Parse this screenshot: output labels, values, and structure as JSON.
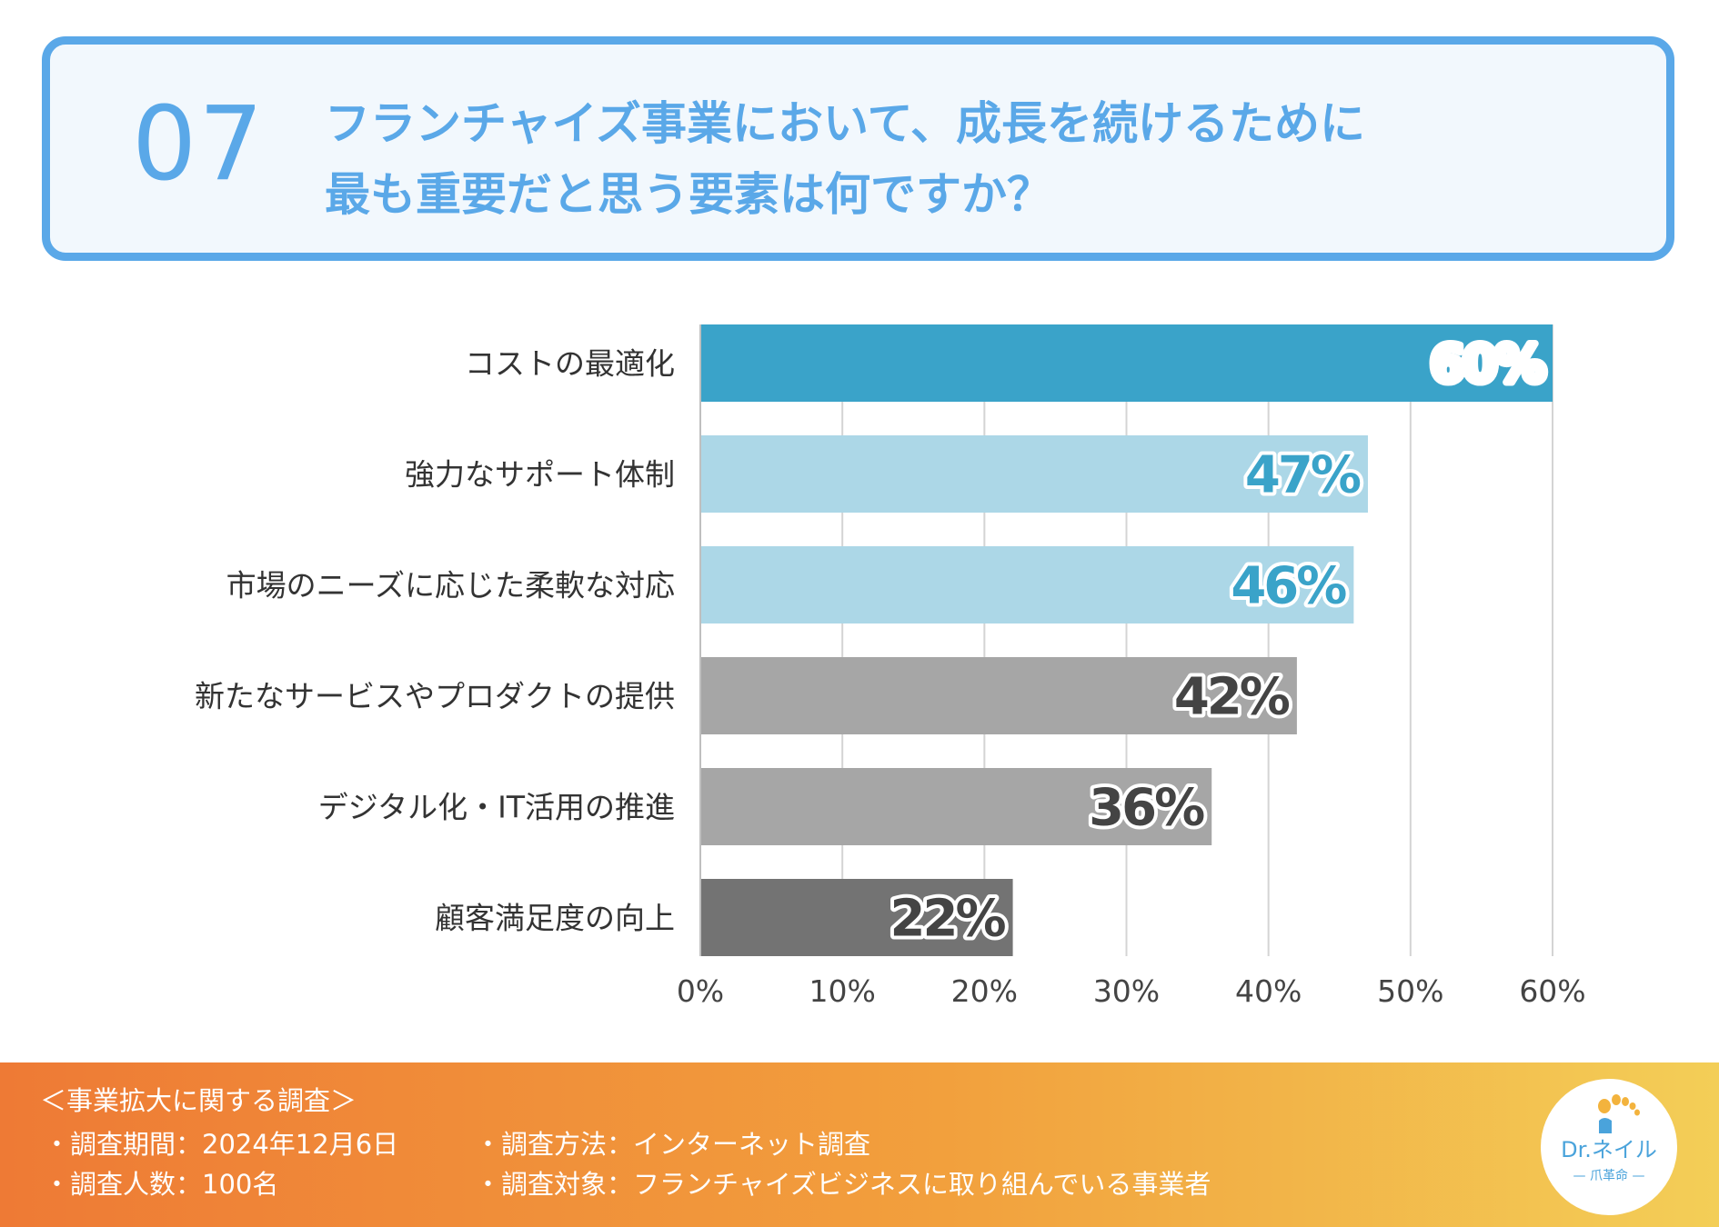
{
  "question": {
    "number": "07",
    "line1": "フランチャイズ事業において、成長を続けるために",
    "line2": "最も重要だと思う要素は何ですか？"
  },
  "chart_data": {
    "type": "bar",
    "orientation": "horizontal",
    "categories": [
      "コストの最適化",
      "強力なサポート体制",
      "市場のニーズに応じた柔軟な対応",
      "新たなサービスやプロダクトの提供",
      "デジタル化・IT活用の推進",
      "顧客満足度の向上"
    ],
    "values": [
      60,
      47,
      46,
      42,
      36,
      22
    ],
    "value_labels": [
      "60%",
      "47%",
      "46%",
      "42%",
      "36%",
      "22%"
    ],
    "bar_colors": [
      "#3aa3c9",
      "#acd7e7",
      "#acd7e7",
      "#a6a6a6",
      "#a6a6a6",
      "#737373"
    ],
    "value_label_colors": [
      "#ffffff",
      "#3aa3c9",
      "#3aa3c9",
      "#444444",
      "#444444",
      "#444444"
    ],
    "xlim": [
      0,
      60
    ],
    "xticks": [
      0,
      10,
      20,
      30,
      40,
      50,
      60
    ],
    "xtick_labels": [
      "0%",
      "10%",
      "20%",
      "30%",
      "40%",
      "50%",
      "60%"
    ],
    "grid": true,
    "title": "",
    "xlabel": "",
    "ylabel": ""
  },
  "footer": {
    "title": "＜事業拡大に関する調査＞",
    "period": "・調査期間：2024年12月6日",
    "method": "・調査方法：インターネット調査",
    "people": "・調査人数：100名",
    "target": "・調査対象：フランチャイズビジネスに取り組んでいる事業者"
  },
  "logo": {
    "main": "Dr.ネイル",
    "sub": "— 爪革命 —"
  },
  "colors": {
    "accent": "#5aa8e8",
    "footer_start": "#ee7a35",
    "footer_end": "#f3ce57"
  }
}
